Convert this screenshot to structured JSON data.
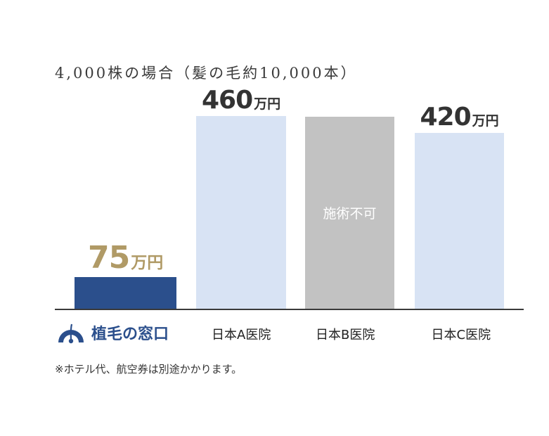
{
  "title": "4,000株の場合（髪の毛約10,000本）",
  "footnote": "※ホテル代、航空券は別途かかります。",
  "brand": {
    "name": "植毛の窓口",
    "icon": "hair-follicle-logo-icon"
  },
  "chart_data": {
    "type": "bar",
    "title": "4,000株の場合（髪の毛約10,000本）",
    "unit": "万円",
    "categories": [
      "植毛の窓口",
      "日本A医院",
      "日本B医院",
      "日本C医院"
    ],
    "values": [
      75,
      460,
      null,
      420
    ],
    "value_labels": [
      "75",
      "460",
      "",
      "420"
    ],
    "notes": [
      "",
      "",
      "施術不可",
      ""
    ],
    "colors": {
      "highlight_bar": "#2b4f8c",
      "other_bar": "#d8e3f4",
      "unavailable_bar": "#c2c2c2",
      "highlight_text": "#b09a66",
      "value_text": "#333333"
    }
  }
}
